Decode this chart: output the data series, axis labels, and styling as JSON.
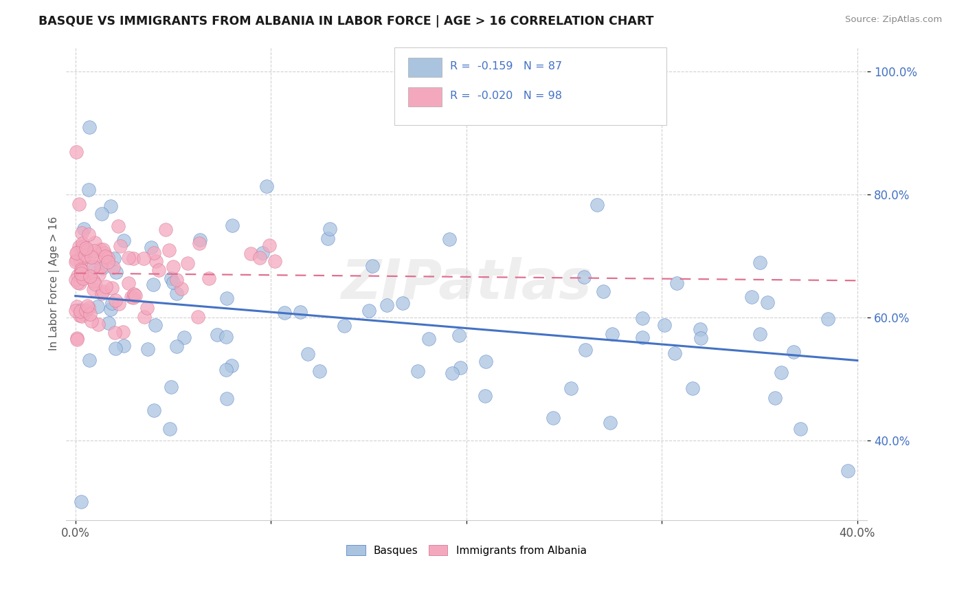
{
  "title": "BASQUE VS IMMIGRANTS FROM ALBANIA IN LABOR FORCE | AGE > 16 CORRELATION CHART",
  "source": "Source: ZipAtlas.com",
  "ylabel": "In Labor Force | Age > 16",
  "xlim": [
    -0.005,
    0.405
  ],
  "ylim": [
    0.27,
    1.04
  ],
  "xticks": [
    0.0,
    0.1,
    0.2,
    0.3,
    0.4
  ],
  "xticklabels": [
    "0.0%",
    "",
    "",
    "",
    "40.0%"
  ],
  "yticks": [
    0.4,
    0.6,
    0.8,
    1.0
  ],
  "yticklabels": [
    "40.0%",
    "60.0%",
    "80.0%",
    "100.0%"
  ],
  "color_basque": "#aac4e0",
  "color_albania": "#f4a8be",
  "trendline_basque": "#4472c4",
  "trendline_albania": "#e07090",
  "watermark": "ZIPatlas",
  "basque_trend_x0": 0.0,
  "basque_trend_y0": 0.635,
  "basque_trend_x1": 0.4,
  "basque_trend_y1": 0.53,
  "albania_trend_x0": 0.0,
  "albania_trend_y0": 0.672,
  "albania_trend_x1": 0.4,
  "albania_trend_y1": 0.66
}
